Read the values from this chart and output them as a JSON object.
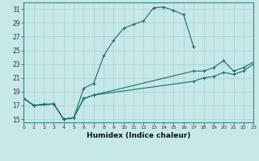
{
  "xlabel": "Humidex (Indice chaleur)",
  "xlim": [
    0,
    23
  ],
  "ylim": [
    14.5,
    32
  ],
  "xticks": [
    0,
    1,
    2,
    3,
    4,
    5,
    6,
    7,
    8,
    9,
    10,
    11,
    12,
    13,
    14,
    15,
    16,
    17,
    18,
    19,
    20,
    21,
    22,
    23
  ],
  "yticks": [
    15,
    17,
    19,
    21,
    23,
    25,
    27,
    29,
    31
  ],
  "bg_color": "#c6e8e8",
  "grid_color": "#aacfcf",
  "line_color": "#1a6b6b",
  "line1_x": [
    0,
    1,
    2,
    3,
    4,
    5,
    6,
    7,
    8,
    9,
    10,
    11,
    12,
    13,
    14,
    15,
    16,
    17
  ],
  "line1_y": [
    18.0,
    17.0,
    17.2,
    17.2,
    15.0,
    15.2,
    19.5,
    20.2,
    24.2,
    26.5,
    28.2,
    28.8,
    29.3,
    31.2,
    31.3,
    30.8,
    30.2,
    25.5
  ],
  "line2_x": [
    0,
    1,
    3,
    4,
    5,
    6,
    7,
    17,
    18,
    19,
    20,
    21,
    22,
    23
  ],
  "line2_y": [
    18.0,
    17.0,
    17.2,
    15.0,
    15.2,
    18.0,
    18.5,
    22.0,
    22.0,
    22.5,
    23.5,
    22.0,
    22.5,
    23.3
  ],
  "line3_x": [
    0,
    1,
    3,
    4,
    5,
    6,
    7,
    17,
    18,
    19,
    20,
    21,
    22,
    23
  ],
  "line3_y": [
    18.0,
    17.0,
    17.2,
    15.0,
    15.2,
    18.0,
    18.5,
    20.5,
    21.0,
    21.2,
    21.8,
    21.5,
    22.0,
    23.0
  ]
}
